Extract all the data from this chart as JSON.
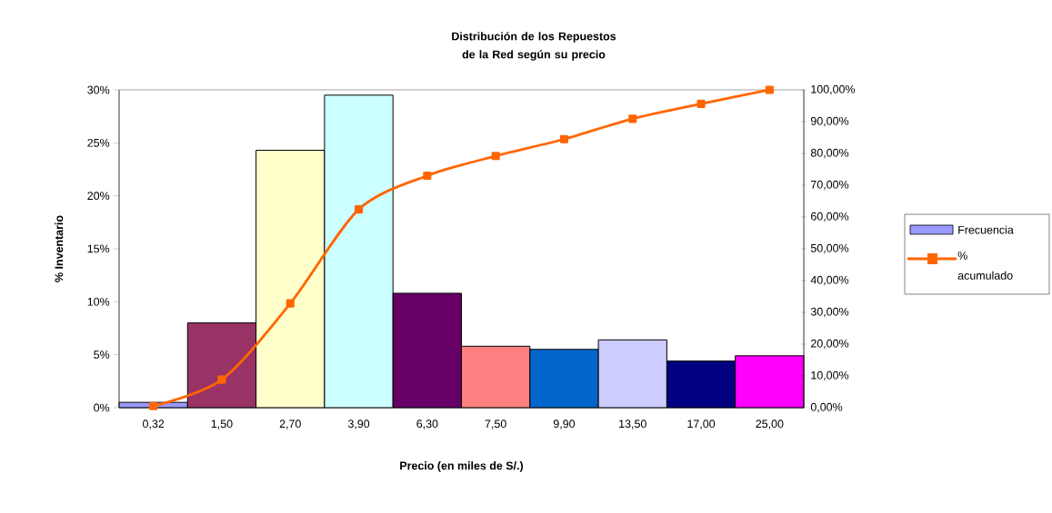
{
  "chart_data": {
    "type": "bar",
    "title": "Distribución de los Repuestos de la Red según su precio",
    "xlabel": "Precio (en miles de S/.)",
    "ylabel": "% Inventario",
    "categories": [
      "0,32",
      "1,50",
      "2,70",
      "3,90",
      "6,30",
      "7,50",
      "9,90",
      "13,50",
      "17,00",
      "25,00"
    ],
    "series": [
      {
        "name": "Frecuencia",
        "colors": [
          "#9999ff",
          "#993366",
          "#ffffcc",
          "#ccffff",
          "#660066",
          "#ff8080",
          "#0066cc",
          "#ccccff",
          "#000080",
          "#ff00ff"
        ],
        "values": [
          0.5,
          8.0,
          24.3,
          29.5,
          10.8,
          5.8,
          5.5,
          6.4,
          4.4,
          4.9
        ]
      },
      {
        "name": "% acumulado",
        "type": "line",
        "axis": "y2",
        "color": "#ff6600",
        "marker": "square",
        "values": [
          0.5,
          8.8,
          32.8,
          62.4,
          73.0,
          79.2,
          84.5,
          90.9,
          95.6,
          100
        ]
      }
    ],
    "ylim": [
      0,
      30
    ],
    "yticks": [
      {
        "value": 0,
        "label": "0%"
      },
      {
        "value": 5,
        "label": "5%"
      },
      {
        "value": 10,
        "label": "10%"
      },
      {
        "value": 15,
        "label": "15%"
      },
      {
        "value": 20,
        "label": "20%"
      },
      {
        "value": 25,
        "label": "25%"
      },
      {
        "value": 30,
        "label": "30%"
      }
    ],
    "y2lim": [
      0,
      100
    ],
    "y2ticks": [
      {
        "value": 0,
        "label": "0,00%"
      },
      {
        "value": 10,
        "label": "10,00%"
      },
      {
        "value": 20,
        "label": "20,00%"
      },
      {
        "value": 30,
        "label": "30,00%"
      },
      {
        "value": 40,
        "label": "40,00%"
      },
      {
        "value": 50,
        "label": "50,00%"
      },
      {
        "value": 60,
        "label": "60,00%"
      },
      {
        "value": 70,
        "label": "70,00%"
      },
      {
        "value": 80,
        "label": "80,00%"
      },
      {
        "value": 90,
        "label": "90,00%"
      },
      {
        "value": 100,
        "label": "100,00%"
      }
    ],
    "legend": "right"
  }
}
